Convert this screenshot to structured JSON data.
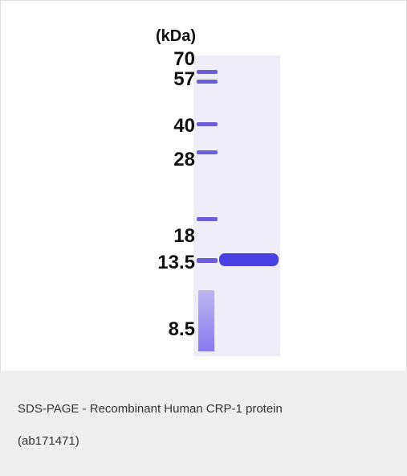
{
  "figure": {
    "unit_label": "(kDa)",
    "markers": [
      "70",
      "57",
      "40",
      "28",
      "18",
      "13.5",
      "8.5"
    ]
  },
  "caption": "SDS-PAGE - Recombinant Human CRP-1 protein (ab171471)"
}
